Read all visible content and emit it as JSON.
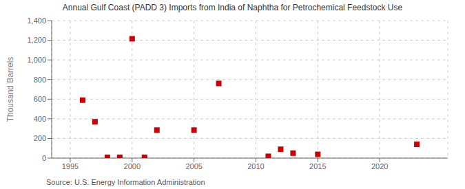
{
  "chart_data": {
    "type": "scatter",
    "title": "Annual Gulf Coast (PADD 3) Imports from India of Naphtha for Petrochemical Feedstock Use",
    "y_label": "Thousand Barrels",
    "annotations": [
      "Source: U.S. Energy Information Administration"
    ],
    "x": [
      1996,
      1997,
      1998,
      1999,
      2000,
      2001,
      2002,
      2005,
      2007,
      2011,
      2012,
      2013,
      2015,
      2023
    ],
    "values": [
      590,
      370,
      8,
      8,
      1215,
      8,
      285,
      285,
      760,
      18,
      90,
      50,
      38,
      140
    ],
    "color": "#cc0000",
    "marker": "square",
    "xlim": [
      1993.5,
      2025.5
    ],
    "ylim": [
      0,
      1400
    ],
    "xticks": [
      1995,
      2000,
      2005,
      2010,
      2015,
      2020
    ],
    "yticks": [
      0,
      200,
      400,
      600,
      800,
      {
        "value": 1000,
        "label": "1,000"
      },
      {
        "value": 1200,
        "label": "1,200"
      },
      {
        "value": 1400,
        "label": "1,400"
      }
    ],
    "grid": true
  }
}
